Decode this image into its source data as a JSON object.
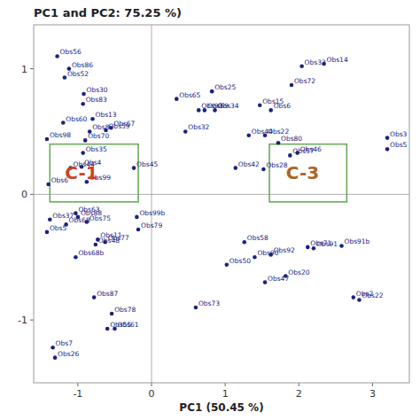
{
  "chart_data": {
    "type": "scatter",
    "title": "PC1 and PC2: 75.25 %)",
    "x_label": "PC1 (50.45 %)",
    "xlim": [
      -1.6,
      3.5
    ],
    "ylim": [
      -1.5,
      1.35
    ],
    "xticks": [
      -1,
      0,
      1,
      2,
      3
    ],
    "yticks": [
      -1,
      0,
      1
    ],
    "grid": false,
    "color": "#1a237e",
    "point_labels": [
      "Obs56",
      "Obs86",
      "Obs52",
      "Obs30",
      "Obs83",
      "Obs60",
      "Obs13",
      "Obs8",
      "Obs59",
      "Obs67",
      "Obs98",
      "Obs70",
      "Obs35",
      "Obs44",
      "Obs4",
      "Obs99",
      "Obs6",
      "Obs63",
      "Obs37",
      "Obs88",
      "Obs75",
      "Obs68",
      "Obs11",
      "Obs48",
      "Obs77",
      "Obs5",
      "Obs68b",
      "Obs87",
      "Obs78",
      "Obs55",
      "Obs61",
      "Obs7",
      "Obs26",
      "Obs45",
      "Obs99b",
      "Obs79",
      "Obs32",
      "Obs65",
      "Obs25",
      "Obs93",
      "Obs69",
      "Obs34",
      "Obs73",
      "Obs50",
      "Obs58",
      "Obs42",
      "Obs44",
      "Obs22",
      "Obs80",
      "Obs15",
      "Obs6",
      "Obs28",
      "Obs90",
      "Obs92",
      "Obs57",
      "Obs46",
      "Obs47",
      "Obs20",
      "Obs71",
      "Obs91",
      "Obs91b",
      "Obs72",
      "Obs33",
      "Obs14",
      "Obs2",
      "Obs22",
      "Obs3",
      "Obs5"
    ],
    "x": [
      -1.28,
      -1.12,
      -1.18,
      -0.92,
      -0.93,
      -1.2,
      -0.8,
      -0.84,
      -0.62,
      -0.55,
      -1.42,
      -0.9,
      -0.93,
      -1.1,
      -0.95,
      -0.88,
      -1.4,
      -1.03,
      -1.38,
      -1.0,
      -0.88,
      -1.16,
      -0.73,
      -0.76,
      -0.63,
      -1.42,
      -1.03,
      -0.78,
      -0.54,
      -0.6,
      -0.5,
      -1.34,
      -1.31,
      -0.24,
      -0.2,
      -0.18,
      0.46,
      0.34,
      0.82,
      0.64,
      0.72,
      0.86,
      0.6,
      1.02,
      1.26,
      1.14,
      1.32,
      1.54,
      1.72,
      1.47,
      1.62,
      1.52,
      1.4,
      1.62,
      1.88,
      1.98,
      1.54,
      1.82,
      2.12,
      2.2,
      2.58,
      1.9,
      2.04,
      2.34,
      2.74,
      2.82,
      3.2,
      3.2
    ],
    "values": [
      1.1,
      1.0,
      0.93,
      0.8,
      0.72,
      0.57,
      0.6,
      0.5,
      0.51,
      0.53,
      0.44,
      0.43,
      0.33,
      0.21,
      0.22,
      0.1,
      0.08,
      -0.15,
      -0.2,
      -0.18,
      -0.22,
      -0.24,
      -0.36,
      -0.4,
      -0.38,
      -0.3,
      -0.5,
      -0.82,
      -0.95,
      -1.07,
      -1.07,
      -1.22,
      -1.3,
      0.21,
      -0.18,
      -0.28,
      0.5,
      0.76,
      0.82,
      0.67,
      0.67,
      0.67,
      -0.9,
      -0.56,
      -0.38,
      0.21,
      0.47,
      0.47,
      0.41,
      0.71,
      0.67,
      0.2,
      -0.5,
      -0.48,
      0.31,
      0.33,
      -0.7,
      -0.65,
      -0.42,
      -0.43,
      -0.41,
      0.87,
      1.02,
      1.04,
      -0.82,
      -0.84,
      0.45,
      0.36
    ],
    "crosshair": {
      "x": 0,
      "y": 0
    },
    "box_color": "#6aaa5a",
    "boxes": [
      {
        "x0": -1.38,
        "y0": -0.06,
        "x1": -0.18,
        "y1": 0.4,
        "label": "C-1",
        "label_x": -0.95,
        "label_y": 0.17,
        "label_color": "#cc4422"
      },
      {
        "x0": 1.6,
        "y0": -0.06,
        "x1": 2.65,
        "y1": 0.4,
        "label": "C-3",
        "label_x": 2.05,
        "label_y": 0.17,
        "label_color": "#aa6622"
      }
    ]
  }
}
